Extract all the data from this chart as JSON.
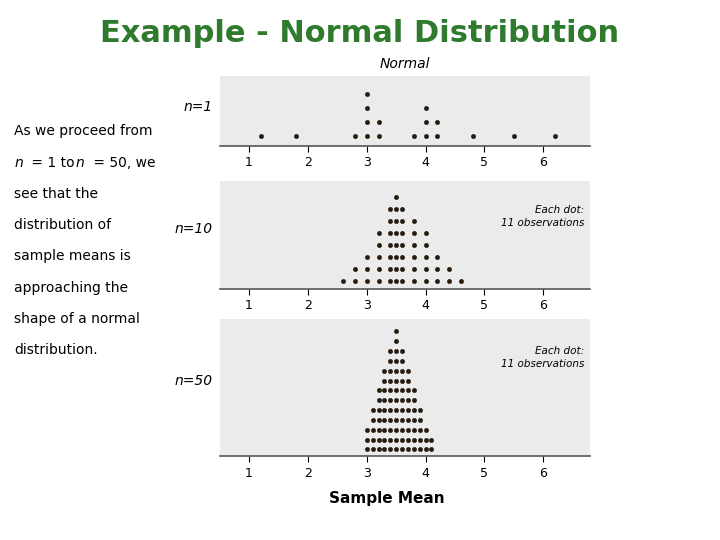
{
  "title": "Example - Normal Distribution",
  "title_color": "#2E7B2E",
  "title_fontsize": 22,
  "body_text_line1": "As we proceed from",
  "body_text_line2": "n = 1 to n = 50, we",
  "body_text_line3": "see that the",
  "body_text_line4": "distribution of",
  "body_text_line5": "sample means is",
  "body_text_line6": "approaching the",
  "body_text_line7": "shape of a normal",
  "body_text_line8": "distribution.",
  "body_fontsize": 10,
  "bg_color": "#FFFFFF",
  "panel_bg": "#EBEBEB",
  "dot_color": "#2A1A0A",
  "top_label": "Normal",
  "bottom_label": "Sample Mean",
  "annotation_text": "Each dot:\n11 observations",
  "xmin": 0.5,
  "xmax": 6.8,
  "xticks": [
    1,
    2,
    3,
    4,
    5,
    6
  ],
  "n1_heights": {
    "1.2": 1,
    "1.8": 1,
    "2.8": 1,
    "3.0": 4,
    "3.2": 2,
    "3.8": 1,
    "4.0": 3,
    "4.2": 2,
    "4.8": 1,
    "5.5": 1,
    "6.2": 1
  },
  "n10_heights": {
    "2.6": 1,
    "2.8": 2,
    "3.0": 3,
    "3.2": 5,
    "3.4": 7,
    "3.5": 8,
    "3.6": 7,
    "3.8": 6,
    "4.0": 5,
    "4.2": 3,
    "4.4": 2,
    "4.6": 1
  },
  "n50_heights": {
    "3.0": 3,
    "3.1": 5,
    "3.2": 7,
    "3.3": 9,
    "3.4": 11,
    "3.5": 13,
    "3.6": 11,
    "3.7": 9,
    "3.8": 7,
    "3.9": 5,
    "4.0": 3,
    "4.1": 2
  }
}
